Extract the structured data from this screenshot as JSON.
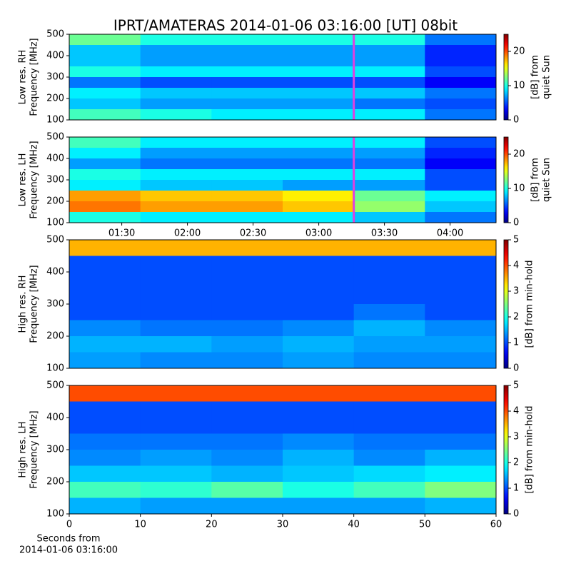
{
  "title": "IPRT/AMATERAS 2014-01-06 03:16:00 [UT]   08bit",
  "chart_data": [
    {
      "type": "heatmap",
      "ylabel": [
        "Low res. RH",
        "Frequency [MHz]"
      ],
      "ylim": [
        100,
        500
      ],
      "yticks": [
        100,
        200,
        300,
        400,
        500
      ],
      "xlim": [
        "01:06",
        "04:21"
      ],
      "marker": "03:16",
      "marker_color": "#e040e0",
      "zlim": [
        0,
        25
      ],
      "zticks": [
        0,
        10,
        20
      ],
      "colorbar_label": [
        "[dB] from",
        "quiet Sun"
      ],
      "z": [
        [
          12,
          10,
          10,
          10,
          10,
          6
        ],
        [
          8,
          7,
          7,
          7,
          7,
          4
        ],
        [
          8,
          7,
          7,
          7,
          7,
          4
        ],
        [
          10,
          9,
          9,
          9,
          9,
          5
        ],
        [
          6,
          5,
          5,
          5,
          5,
          3
        ],
        [
          9,
          8,
          8,
          8,
          8,
          6
        ],
        [
          8,
          7,
          7,
          7,
          6,
          5
        ],
        [
          11,
          10,
          9,
          9,
          9,
          6
        ]
      ]
    },
    {
      "type": "heatmap",
      "ylabel": [
        "Low res. LH",
        "Frequency [MHz]"
      ],
      "ylim": [
        100,
        500
      ],
      "yticks": [
        100,
        200,
        300,
        400,
        500
      ],
      "xlim": [
        "01:06",
        "04:21"
      ],
      "xticks": [
        "01:30",
        "02:00",
        "02:30",
        "03:00",
        "03:30",
        "04:00"
      ],
      "marker": "03:16",
      "marker_color": "#e040e0",
      "zlim": [
        0,
        25
      ],
      "zticks": [
        0,
        10,
        20
      ],
      "colorbar_label": [
        "[dB] from",
        "quiet Sun"
      ],
      "z": [
        [
          11,
          9,
          9,
          9,
          9,
          5
        ],
        [
          9,
          7,
          7,
          7,
          7,
          4
        ],
        [
          7,
          6,
          6,
          6,
          6,
          3
        ],
        [
          10,
          9,
          9,
          9,
          9,
          5
        ],
        [
          9,
          8,
          8,
          7,
          7,
          5
        ],
        [
          18,
          17,
          17,
          16,
          12,
          9
        ],
        [
          19,
          18,
          18,
          17,
          13,
          8
        ],
        [
          10,
          9,
          9,
          9,
          8,
          6
        ]
      ]
    },
    {
      "type": "heatmap",
      "ylabel": [
        "High res. RH",
        "Frequency [MHz]"
      ],
      "ylim": [
        100,
        500
      ],
      "yticks": [
        100,
        200,
        300,
        400,
        500
      ],
      "xlim": [
        0,
        60
      ],
      "zlim": [
        0,
        5
      ],
      "zticks": [
        0,
        1,
        2,
        3,
        4,
        5
      ],
      "colorbar_label": [
        "[dB] from min-hold"
      ],
      "z": [
        [
          3.5,
          3.5,
          3.5,
          3.5,
          3.5,
          3.5
        ],
        [
          1,
          1,
          1,
          1,
          1,
          1
        ],
        [
          1,
          1,
          1,
          1,
          1,
          1
        ],
        [
          1,
          1,
          1,
          1,
          1,
          1
        ],
        [
          1,
          1,
          1,
          1,
          1.2,
          1
        ],
        [
          1.3,
          1.2,
          1.2,
          1.3,
          1.5,
          1.3
        ],
        [
          1.5,
          1.5,
          1.4,
          1.5,
          1.4,
          1.4
        ],
        [
          1.4,
          1.3,
          1.3,
          1.4,
          1.3,
          1.3
        ]
      ]
    },
    {
      "type": "heatmap",
      "ylabel": [
        "High res. LH",
        "Frequency [MHz]"
      ],
      "ylim": [
        100,
        500
      ],
      "yticks": [
        100,
        200,
        300,
        400,
        500
      ],
      "xlim": [
        0,
        60
      ],
      "xticks": [
        0,
        10,
        20,
        30,
        40,
        50,
        60
      ],
      "xlabel": [
        "Seconds from",
        "2014-01-06 03:16:00"
      ],
      "zlim": [
        0,
        5
      ],
      "zticks": [
        0,
        1,
        2,
        3,
        4,
        5
      ],
      "colorbar_label": [
        "[dB] from min-hold"
      ],
      "z": [
        [
          4,
          4,
          4,
          4,
          4,
          4
        ],
        [
          1,
          1,
          1,
          1,
          1,
          1
        ],
        [
          1,
          1,
          1,
          1,
          1,
          1
        ],
        [
          1.2,
          1.2,
          1.2,
          1.3,
          1.2,
          1.2
        ],
        [
          1.3,
          1.4,
          1.3,
          1.5,
          1.3,
          1.5
        ],
        [
          1.6,
          1.6,
          1.5,
          1.6,
          1.7,
          1.8
        ],
        [
          2.2,
          2.1,
          2.3,
          2,
          2.2,
          2.5
        ],
        [
          1.5,
          1.4,
          1.4,
          1.4,
          1.4,
          1.5
        ]
      ]
    }
  ]
}
